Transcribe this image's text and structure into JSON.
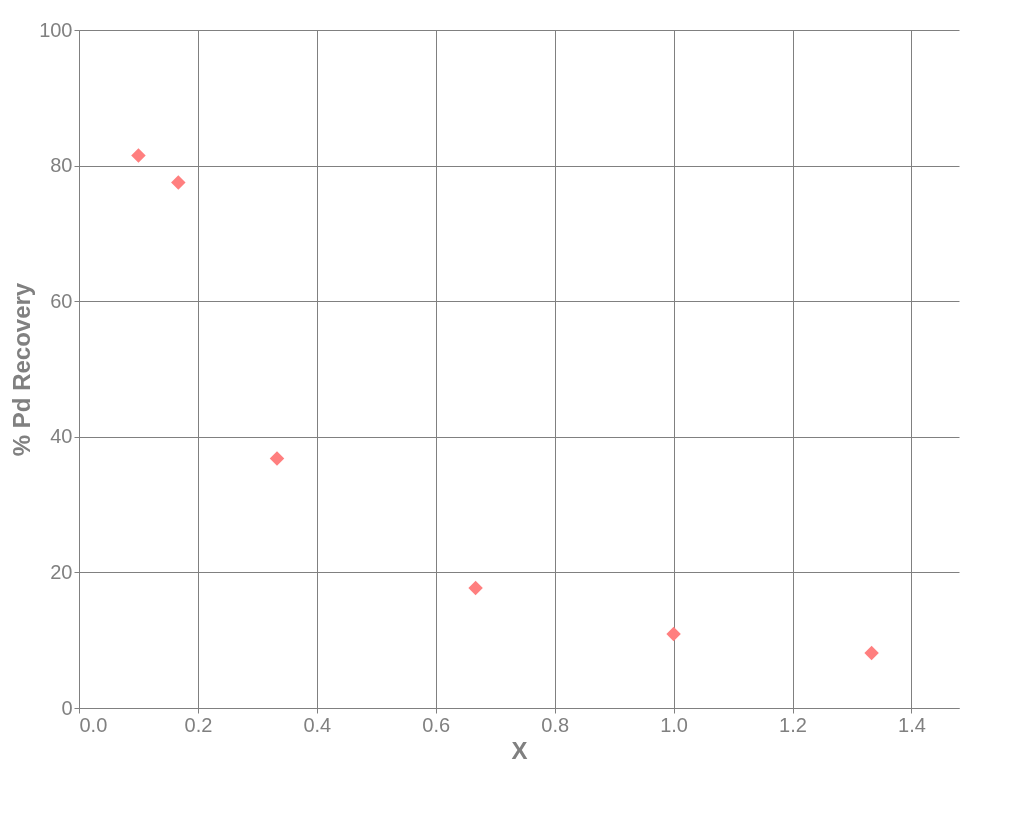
{
  "chart_data": {
    "type": "scatter",
    "xlabel": "X",
    "ylabel": "% Pd Recovery",
    "x": [
      0.1,
      0.167,
      0.333,
      0.667,
      1.0,
      1.333
    ],
    "series": [
      {
        "color": "#ff7f7f",
        "values": [
          81.5,
          77.5,
          36.8,
          17.7,
          10.9,
          8.1
        ]
      }
    ],
    "xlim": [
      0,
      1.48
    ],
    "xticks": [
      {
        "value": 0,
        "label": "0.0"
      },
      0.2,
      0.4,
      0.6,
      0.8,
      {
        "value": 1,
        "label": "1.0"
      },
      1.2,
      1.4
    ],
    "ylim": [
      0,
      100
    ],
    "yticks": [
      0,
      20,
      40,
      60,
      80,
      100
    ],
    "grid": true,
    "marker": "diamond"
  }
}
